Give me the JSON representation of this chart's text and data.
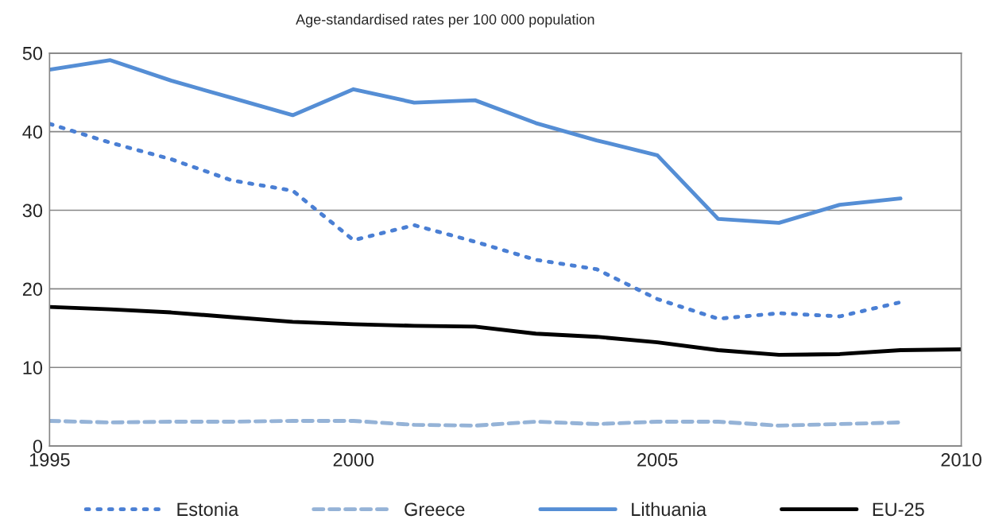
{
  "chart_data": {
    "type": "line",
    "title": "Age-standardised rates per 100 000 population",
    "x": [
      1995,
      1996,
      1997,
      1998,
      1999,
      2000,
      2001,
      2002,
      2003,
      2004,
      2005,
      2006,
      2007,
      2008,
      2009,
      2010
    ],
    "series": [
      {
        "name": "Estonia",
        "color": "#4a7fd4",
        "line_style": "dotted",
        "values": [
          41.0,
          38.6,
          36.5,
          33.8,
          32.5,
          26.2,
          28.1,
          26.0,
          23.7,
          22.5,
          18.7,
          16.2,
          16.9,
          16.5,
          18.3,
          null
        ]
      },
      {
        "name": "Greece",
        "color": "#95b3d7",
        "line_style": "dashed",
        "values": [
          3.2,
          3.0,
          3.1,
          3.1,
          3.2,
          3.2,
          2.7,
          2.6,
          3.1,
          2.8,
          3.1,
          3.1,
          2.6,
          2.8,
          3.0,
          null
        ]
      },
      {
        "name": "Lithuania",
        "color": "#558ed5",
        "line_style": "solid",
        "values": [
          47.9,
          49.1,
          46.5,
          44.3,
          42.1,
          45.4,
          43.7,
          44.0,
          41.1,
          38.9,
          37.0,
          28.9,
          28.4,
          30.7,
          31.5,
          null
        ]
      },
      {
        "name": "EU-25",
        "color": "#000000",
        "line_style": "solid",
        "values": [
          17.7,
          17.4,
          17.0,
          16.4,
          15.8,
          15.5,
          15.3,
          15.2,
          14.3,
          13.9,
          13.2,
          12.2,
          11.6,
          11.7,
          12.2,
          12.3
        ]
      }
    ],
    "xlim": [
      1995,
      2010
    ],
    "xticks": [
      1995,
      2000,
      2005,
      2010
    ],
    "ylim": [
      0,
      50
    ],
    "yticks": [
      0,
      10,
      20,
      30,
      40,
      50
    ],
    "grid": "y",
    "legend": "bottom",
    "marker": "none"
  }
}
